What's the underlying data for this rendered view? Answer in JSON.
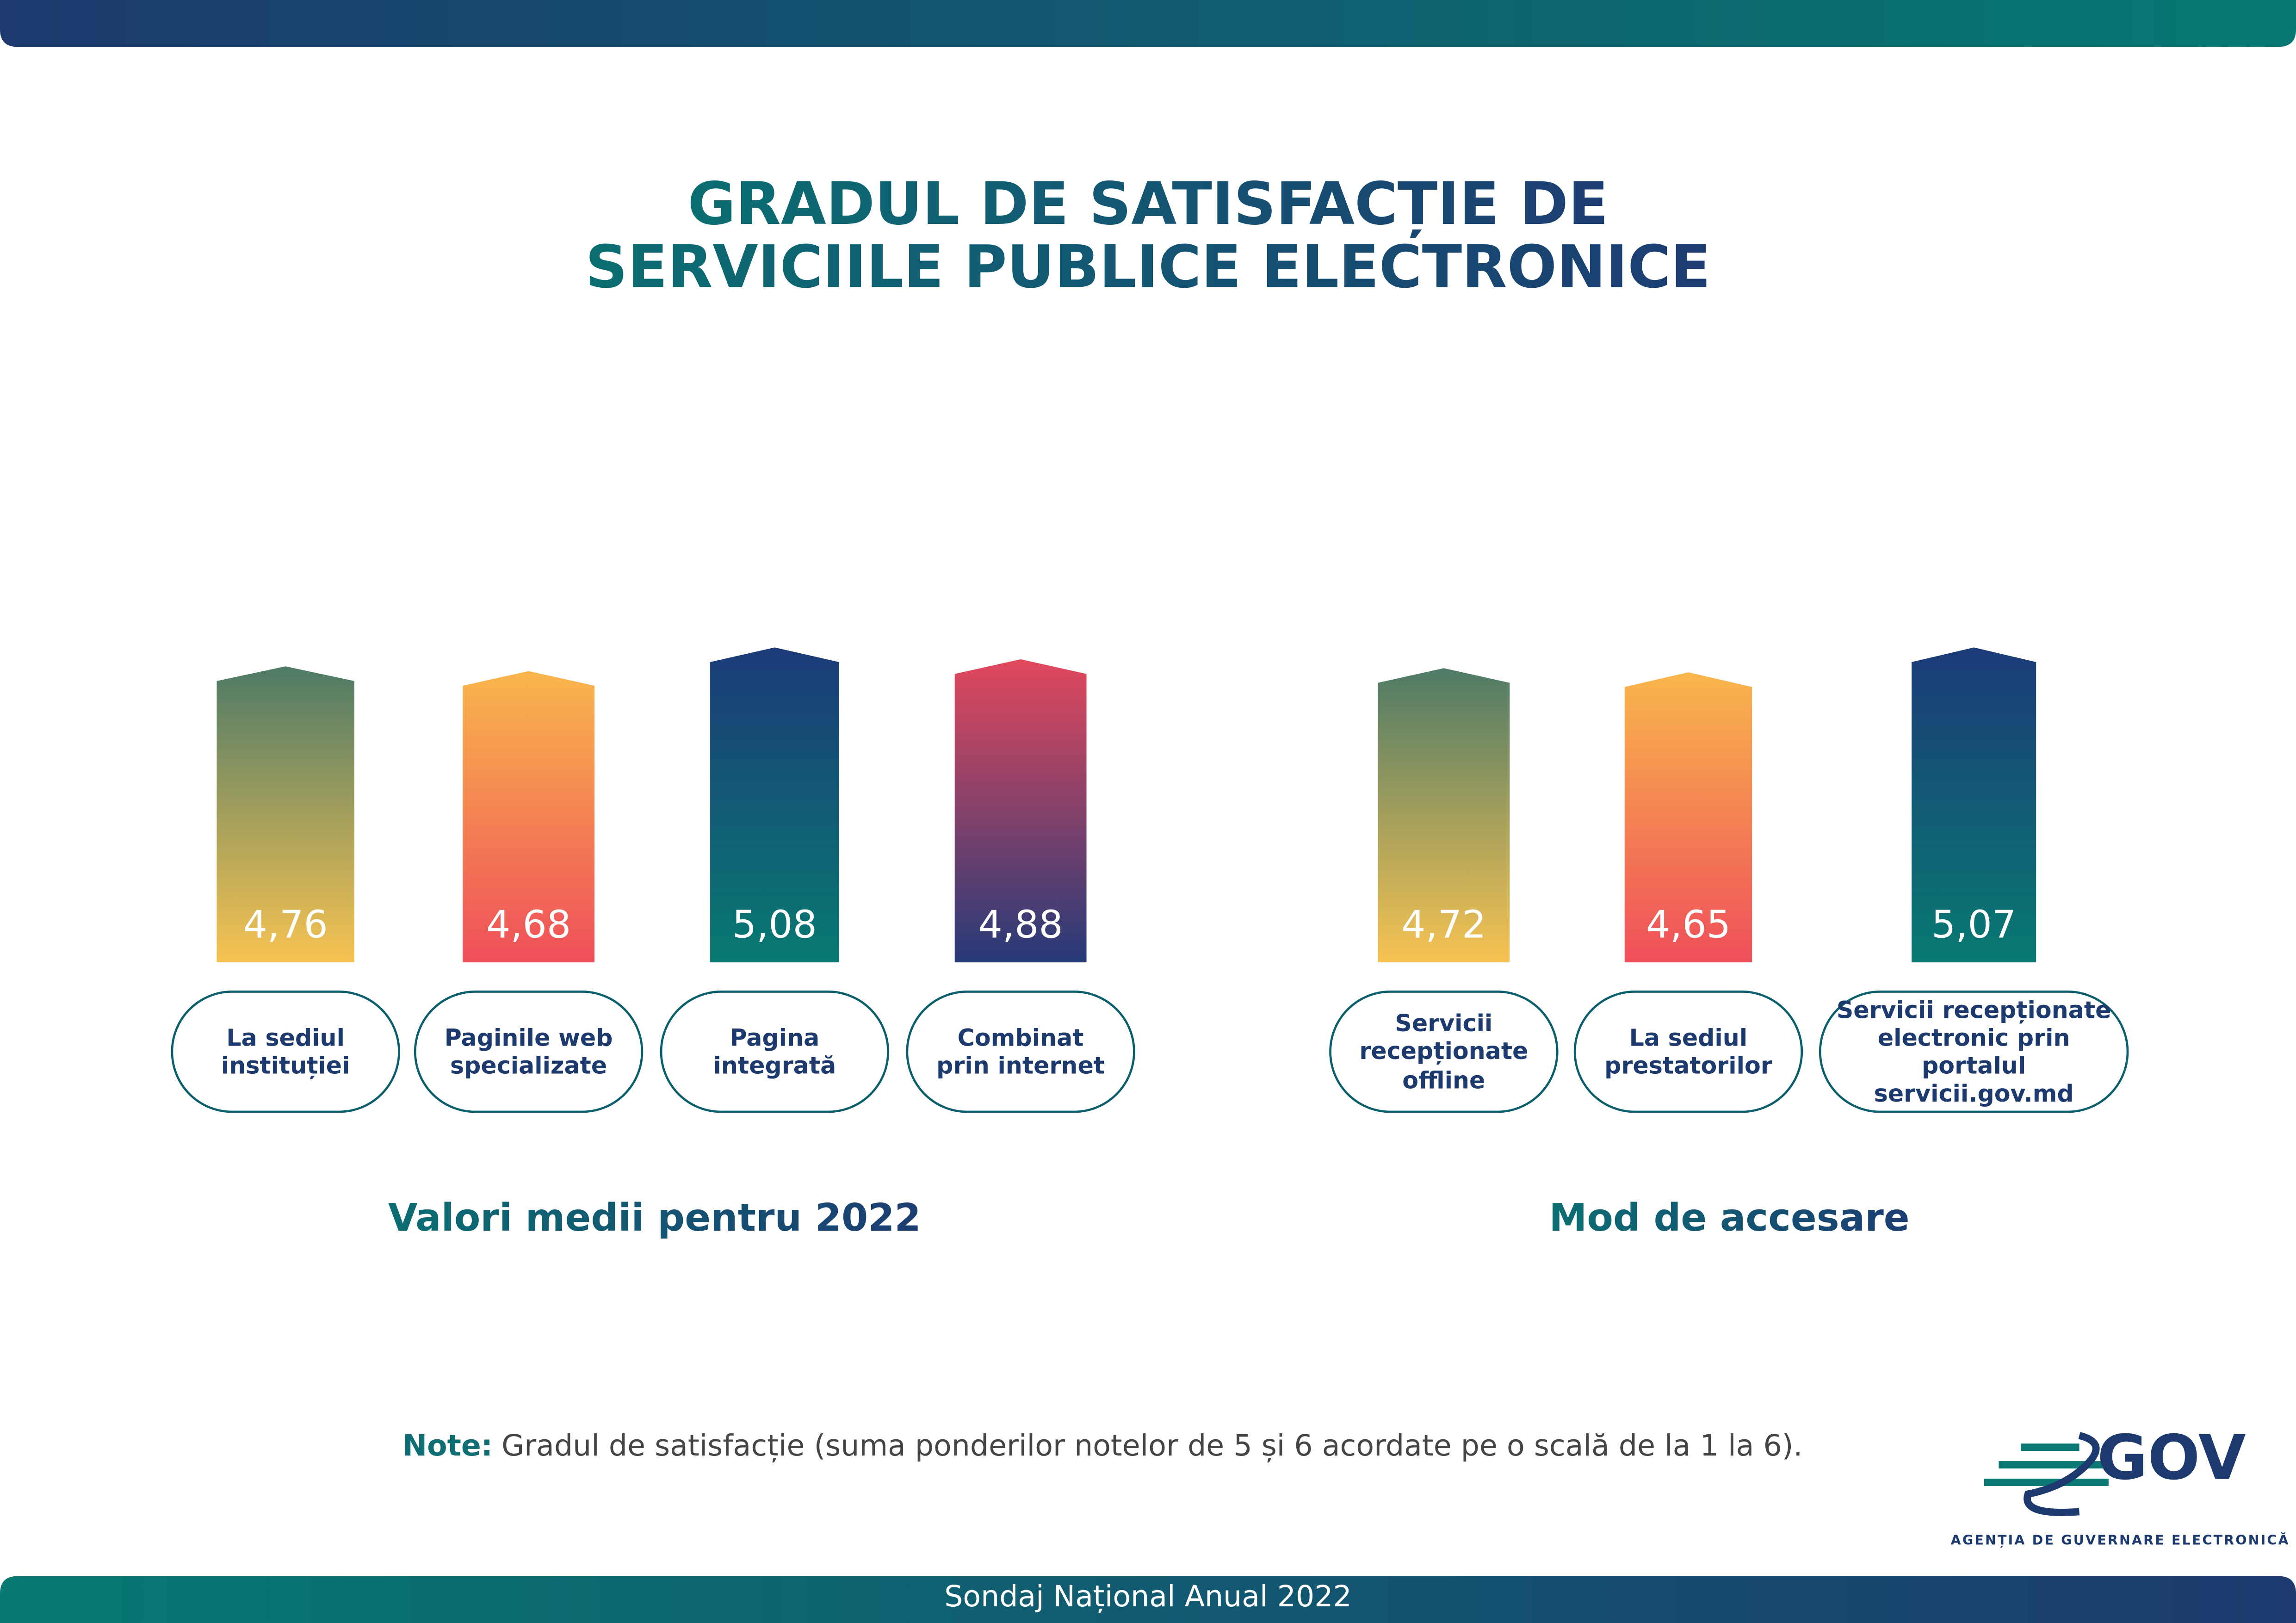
{
  "header": {
    "title_lines": [
      "GRADUL DE SATISFACȚIE DE",
      "SERVICIILE PUBLICE ELECTRONICE"
    ]
  },
  "chart_data": [
    {
      "type": "bar",
      "title": "Valori medii pentru 2022",
      "categories": [
        "La sediul\ninstituției",
        "Paginile web\nspecializate",
        "Pagina\nintegrată",
        "Combinat\nprin internet"
      ],
      "values": [
        4.76,
        4.68,
        5.08,
        4.88
      ],
      "value_labels": [
        "4,76",
        "4,68",
        "5,08",
        "4,88"
      ],
      "colors": [
        [
          "#4e7a66",
          "#f7c352"
        ],
        [
          "#f9b64c",
          "#ef4f5a"
        ],
        [
          "#1c3b78",
          "#087a72"
        ],
        [
          "#e2485c",
          "#263a78"
        ]
      ]
    },
    {
      "type": "bar",
      "title": "Mod de accesare",
      "categories": [
        "Servicii\nrecepționate\noffline",
        "La sediul\nprestatorilor",
        "Servicii recepționate\nelectronic prin portalul\nservicii.gov.md"
      ],
      "values": [
        4.72,
        4.65,
        5.07
      ],
      "value_labels": [
        "4,72",
        "4,65",
        "5,07"
      ],
      "colors": [
        [
          "#4e7a66",
          "#f7c352"
        ],
        [
          "#f9b64c",
          "#ef4f5a"
        ],
        [
          "#1c3b78",
          "#087a72"
        ]
      ]
    }
  ],
  "note": {
    "label": "Note:",
    "text": "Gradul de satisfacție (suma ponderilor notelor de 5 și 6 acordate pe o scală de la 1 la 6)."
  },
  "logo": {
    "text": "GOV",
    "subtitle": "AGENȚIA DE GUVERNARE ELECTRONICĂ"
  },
  "footer": "Sondaj Național Anual 2022"
}
